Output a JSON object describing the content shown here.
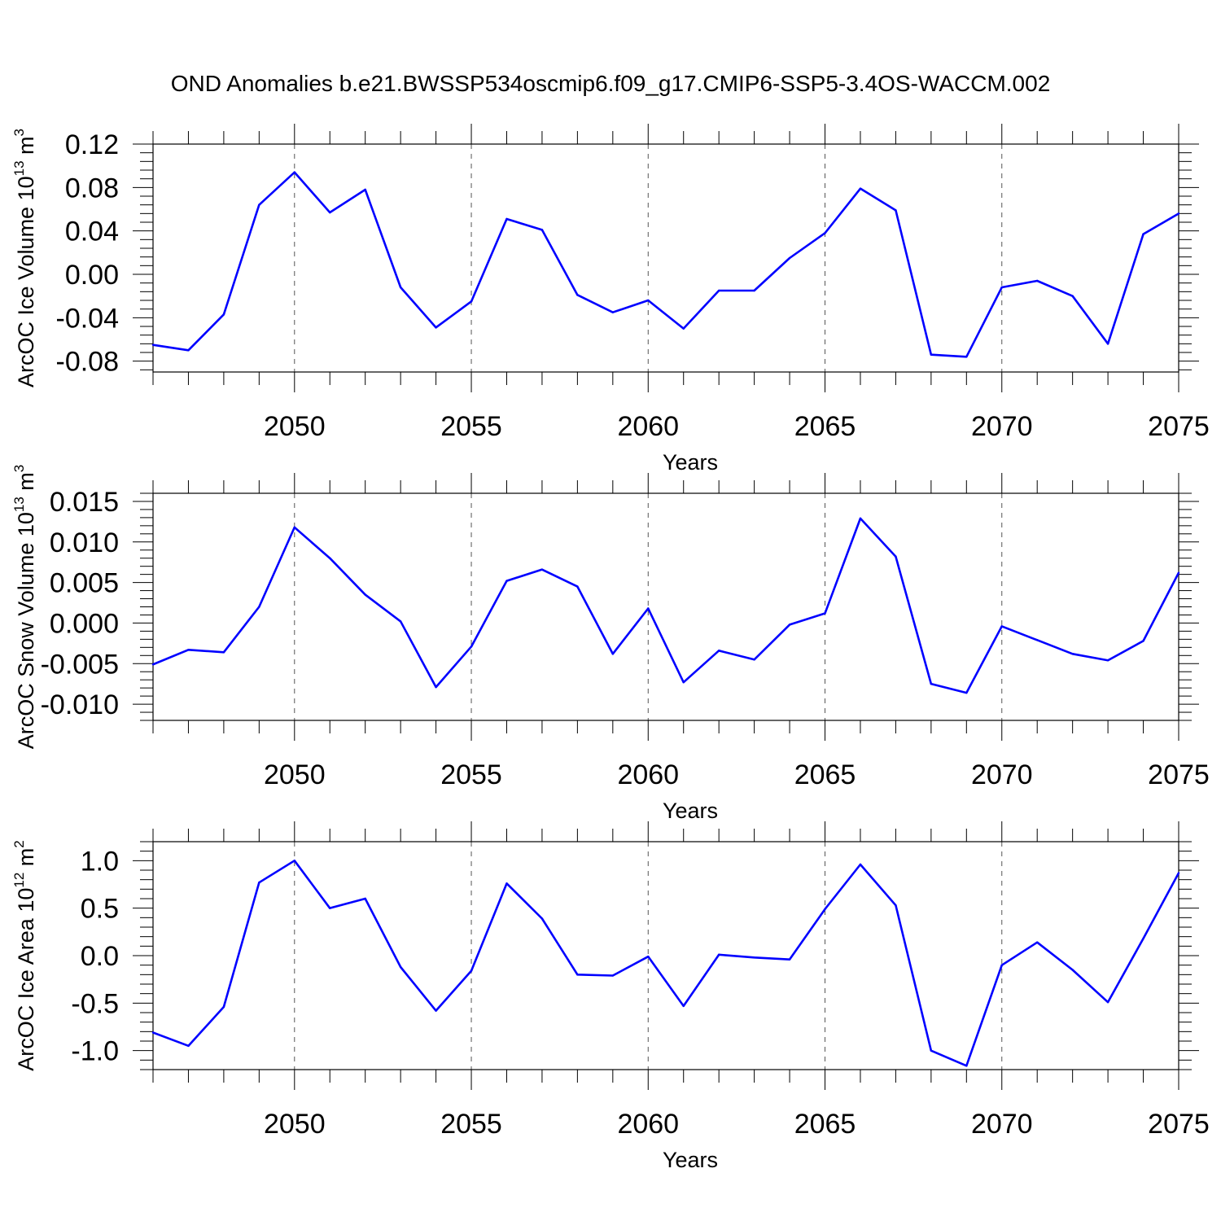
{
  "title": "OND Anomalies b.e21.BWSSP534oscmip6.f09_g17.CMIP6-SSP5-3.4OS-WACCM.002",
  "chart_data": [
    {
      "type": "line",
      "xlabel": "Years",
      "ylabel": "ArcOC Ice Volume 10",
      "ylabel_exp": "13",
      "ylabel_unit": " m",
      "ylabel_unit_exp": "3",
      "xlim": [
        2046,
        2075
      ],
      "ylim": [
        -0.09,
        0.12
      ],
      "grid": "vertical dashed at major x ticks",
      "x": [
        2046,
        2047,
        2048,
        2049,
        2050,
        2051,
        2052,
        2053,
        2054,
        2055,
        2056,
        2057,
        2058,
        2059,
        2060,
        2061,
        2062,
        2063,
        2064,
        2065,
        2066,
        2067,
        2068,
        2069,
        2070,
        2071,
        2072,
        2073,
        2074,
        2075
      ],
      "series": [
        {
          "color": "#0000ff",
          "values": [
            -0.065,
            -0.07,
            -0.037,
            0.064,
            0.094,
            0.057,
            0.078,
            -0.012,
            -0.049,
            -0.025,
            0.051,
            0.041,
            -0.019,
            -0.035,
            -0.024,
            -0.05,
            -0.015,
            -0.015,
            0.015,
            0.038,
            0.079,
            0.059,
            -0.074,
            -0.076,
            -0.012,
            -0.006,
            -0.02,
            -0.064,
            0.037,
            0.056
          ]
        }
      ],
      "xticks": [
        2050,
        2055,
        2060,
        2065,
        2070,
        2075
      ],
      "xtick_labels": [
        "2050",
        "2055",
        "2060",
        "2065",
        "2070",
        "2075"
      ],
      "yticks": [
        0.12,
        0.08,
        0.04,
        0.0,
        -0.04,
        -0.08
      ],
      "ytick_labels": [
        "0.12",
        "0.08",
        "0.04",
        "0.00",
        "-0.04",
        "-0.08"
      ],
      "yminor_step": 0.008
    },
    {
      "type": "line",
      "xlabel": "Years",
      "ylabel": "ArcOC Snow Volume 10",
      "ylabel_exp": "13",
      "ylabel_unit": " m",
      "ylabel_unit_exp": "3",
      "xlim": [
        2046,
        2075
      ],
      "ylim": [
        -0.012,
        0.016
      ],
      "grid": "vertical dashed at major x ticks",
      "x": [
        2046,
        2047,
        2048,
        2049,
        2050,
        2051,
        2052,
        2053,
        2054,
        2055,
        2056,
        2057,
        2058,
        2059,
        2060,
        2061,
        2062,
        2063,
        2064,
        2065,
        2066,
        2067,
        2068,
        2069,
        2070,
        2071,
        2072,
        2073,
        2074,
        2075
      ],
      "series": [
        {
          "color": "#0000ff",
          "values": [
            -0.0051,
            -0.0033,
            -0.0036,
            0.002,
            0.0118,
            0.008,
            0.0035,
            0.0002,
            -0.0079,
            -0.0029,
            0.0052,
            0.0066,
            0.0045,
            -0.0038,
            0.0018,
            -0.0073,
            -0.0034,
            -0.0045,
            -0.0002,
            0.0012,
            0.0129,
            0.0082,
            -0.0075,
            -0.0086,
            -0.0004,
            -0.0021,
            -0.0038,
            -0.0046,
            -0.0022,
            0.0062
          ]
        }
      ],
      "xticks": [
        2050,
        2055,
        2060,
        2065,
        2070,
        2075
      ],
      "xtick_labels": [
        "2050",
        "2055",
        "2060",
        "2065",
        "2070",
        "2075"
      ],
      "yticks": [
        0.015,
        0.01,
        0.005,
        0.0,
        -0.005,
        -0.01
      ],
      "ytick_labels": [
        "0.015",
        "0.010",
        "0.005",
        "0.000",
        "-0.005",
        "-0.010"
      ],
      "yminor_step": 0.001
    },
    {
      "type": "line",
      "xlabel": "Years",
      "ylabel": "ArcOC Ice Area 10",
      "ylabel_exp": "12",
      "ylabel_unit": " m",
      "ylabel_unit_exp": "2",
      "xlim": [
        2046,
        2075
      ],
      "ylim": [
        -1.2,
        1.2
      ],
      "grid": "vertical dashed at major x ticks",
      "x": [
        2046,
        2047,
        2048,
        2049,
        2050,
        2051,
        2052,
        2053,
        2054,
        2055,
        2056,
        2057,
        2058,
        2059,
        2060,
        2061,
        2062,
        2063,
        2064,
        2065,
        2066,
        2067,
        2068,
        2069,
        2070,
        2071,
        2072,
        2073,
        2074,
        2075
      ],
      "series": [
        {
          "color": "#0000ff",
          "values": [
            -0.81,
            -0.95,
            -0.54,
            0.77,
            1.0,
            0.5,
            0.6,
            -0.12,
            -0.58,
            -0.16,
            0.76,
            0.39,
            -0.2,
            -0.21,
            -0.01,
            -0.53,
            0.01,
            -0.02,
            -0.04,
            0.49,
            0.96,
            0.53,
            -1.0,
            -1.16,
            -0.1,
            0.14,
            -0.15,
            -0.49,
            0.18,
            0.87
          ]
        }
      ],
      "xticks": [
        2050,
        2055,
        2060,
        2065,
        2070,
        2075
      ],
      "xtick_labels": [
        "2050",
        "2055",
        "2060",
        "2065",
        "2070",
        "2075"
      ],
      "yticks": [
        1.0,
        0.5,
        0.0,
        -0.5,
        -1.0
      ],
      "ytick_labels": [
        "1.0",
        "0.5",
        "0.0",
        "-0.5",
        "-1.0"
      ],
      "yminor_step": 0.1
    }
  ]
}
